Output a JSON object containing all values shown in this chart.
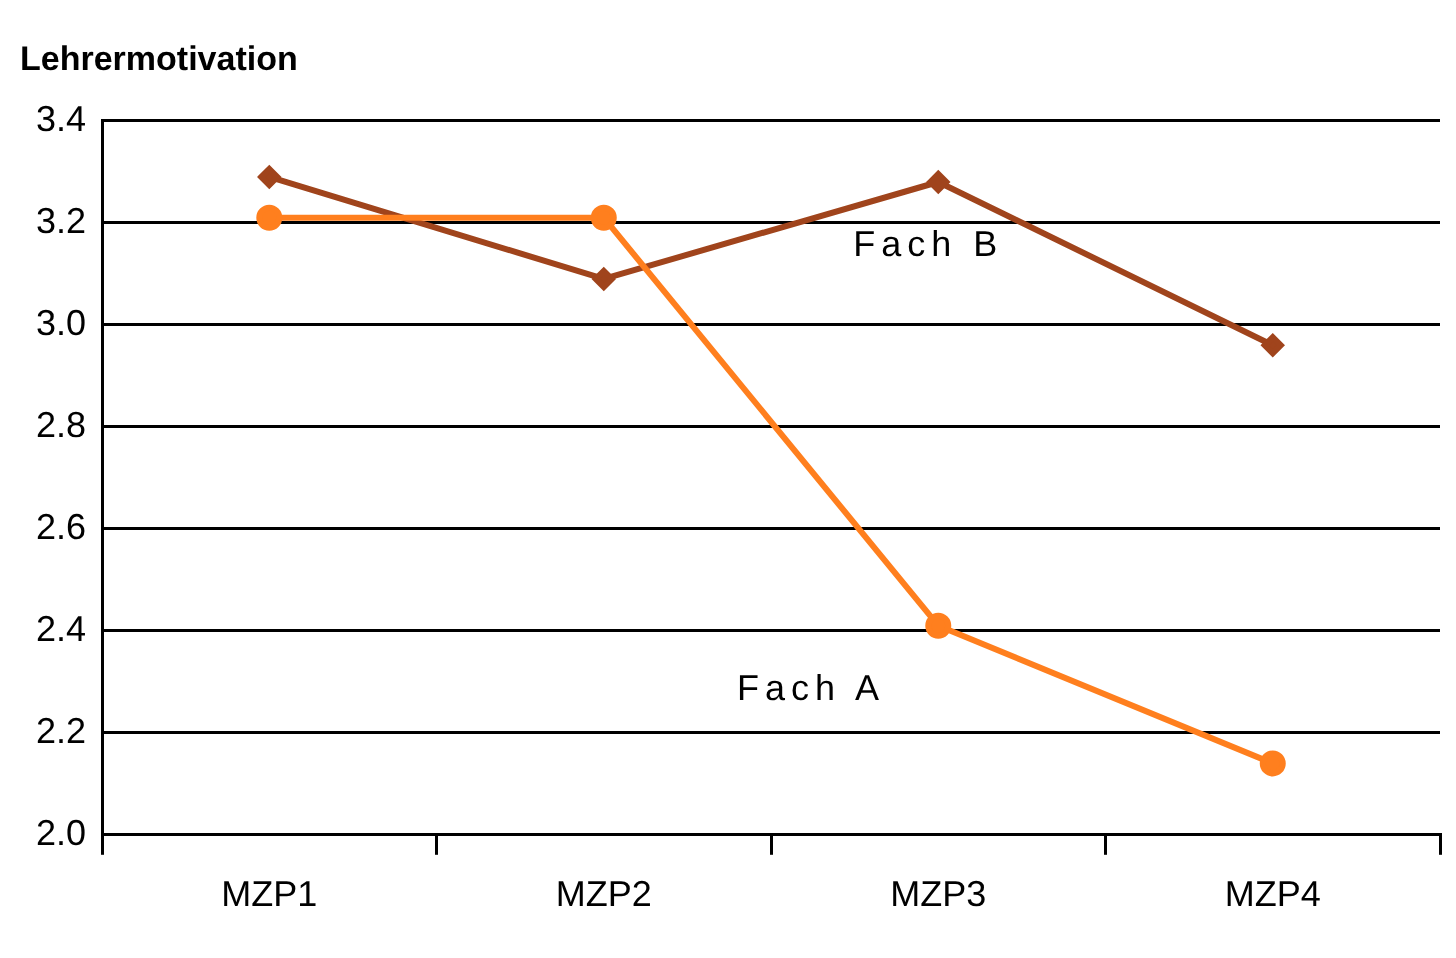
{
  "chart_data": {
    "type": "line",
    "ylabel": "Lehrermotivation",
    "categories": [
      "MZP1",
      "MZP2",
      "MZP3",
      "MZP4"
    ],
    "series": [
      {
        "name": "Fach A",
        "color": "#ff7f1e",
        "marker": "circle",
        "values": [
          3.21,
          3.21,
          2.41,
          2.14
        ]
      },
      {
        "name": "Fach B",
        "color": "#a0441c",
        "marker": "diamond",
        "values": [
          3.29,
          3.09,
          3.28,
          2.96
        ]
      }
    ],
    "ylim": [
      2.0,
      3.4
    ],
    "yticks": [
      {
        "value": 2.0,
        "label": "2.0"
      },
      {
        "value": 2.2,
        "label": "2.2"
      },
      {
        "value": 2.4,
        "label": "2.4"
      },
      {
        "value": 2.6,
        "label": "2.6"
      },
      {
        "value": 2.8,
        "label": "2.8"
      },
      {
        "value": 3.0,
        "label": "3.0"
      },
      {
        "value": 3.2,
        "label": "3.2"
      },
      {
        "value": 3.4,
        "label": "3.4"
      }
    ],
    "grid": "y",
    "legend": false
  }
}
